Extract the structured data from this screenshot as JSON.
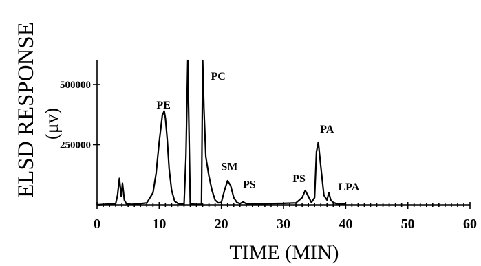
{
  "chart_data": {
    "type": "line",
    "xlabel": "TIME (MIN)",
    "ylabel": "ELSD RESPONSE",
    "yunit": "(μv)",
    "xlim": [
      0,
      60
    ],
    "ylim": [
      0,
      600000
    ],
    "xticks": [
      0,
      10,
      20,
      30,
      40,
      50,
      60
    ],
    "xtick_labels": [
      "0",
      "10",
      "20",
      "30",
      "40",
      "50",
      "60"
    ],
    "yticks": [
      250000,
      500000
    ],
    "ytick_labels": [
      "250000",
      "500000"
    ],
    "grid": false,
    "series": [
      {
        "x": [
          0,
          3.0,
          3.3,
          3.6,
          3.9,
          4.1,
          4.4,
          4.7,
          5.0,
          5.5,
          6.5,
          8.0,
          9.0,
          9.5,
          10.0,
          10.5,
          10.8,
          11.0,
          11.3,
          11.6,
          12.0,
          12.5,
          13.0,
          13.5,
          14.0,
          14.3,
          14.6,
          15.0,
          16.0,
          16.8,
          17.0,
          17.2,
          17.5,
          18.0,
          18.5,
          19.0,
          19.5,
          20.0,
          20.5,
          21.0,
          21.5,
          22.0,
          22.5,
          23.0,
          23.5,
          24.0,
          24.5,
          25.0,
          30.0,
          32.0,
          33.0,
          33.5,
          34.0,
          34.5,
          35.0,
          35.3,
          35.6,
          36.0,
          36.5,
          37.0,
          37.3,
          37.6,
          38.0,
          38.5,
          40.0
        ],
        "y": [
          0,
          5000,
          40000,
          110000,
          35000,
          90000,
          20000,
          5000,
          3000,
          2000,
          3000,
          8000,
          50000,
          130000,
          260000,
          370000,
          390000,
          360000,
          270000,
          150000,
          60000,
          15000,
          6000,
          3000,
          3000,
          200000,
          600000,
          3000,
          2000,
          2000,
          600000,
          400000,
          200000,
          120000,
          60000,
          20000,
          8000,
          10000,
          60000,
          100000,
          80000,
          30000,
          10000,
          5000,
          12000,
          5000,
          4000,
          4000,
          6000,
          8000,
          30000,
          60000,
          35000,
          10000,
          30000,
          220000,
          260000,
          160000,
          40000,
          20000,
          50000,
          20000,
          10000,
          5000,
          3000
        ]
      }
    ],
    "annotations": [
      {
        "label": "PE",
        "x": 10.7,
        "y": 400000
      },
      {
        "label": "PC",
        "x": 19.5,
        "y": 520000
      },
      {
        "label": "SM",
        "x": 21.3,
        "y": 145000
      },
      {
        "label": "PS",
        "x": 24.5,
        "y": 70000
      },
      {
        "label": "PS",
        "x": 32.5,
        "y": 95000
      },
      {
        "label": "PA",
        "x": 37.0,
        "y": 300000
      },
      {
        "label": "LPA",
        "x": 40.5,
        "y": 60000
      }
    ]
  }
}
